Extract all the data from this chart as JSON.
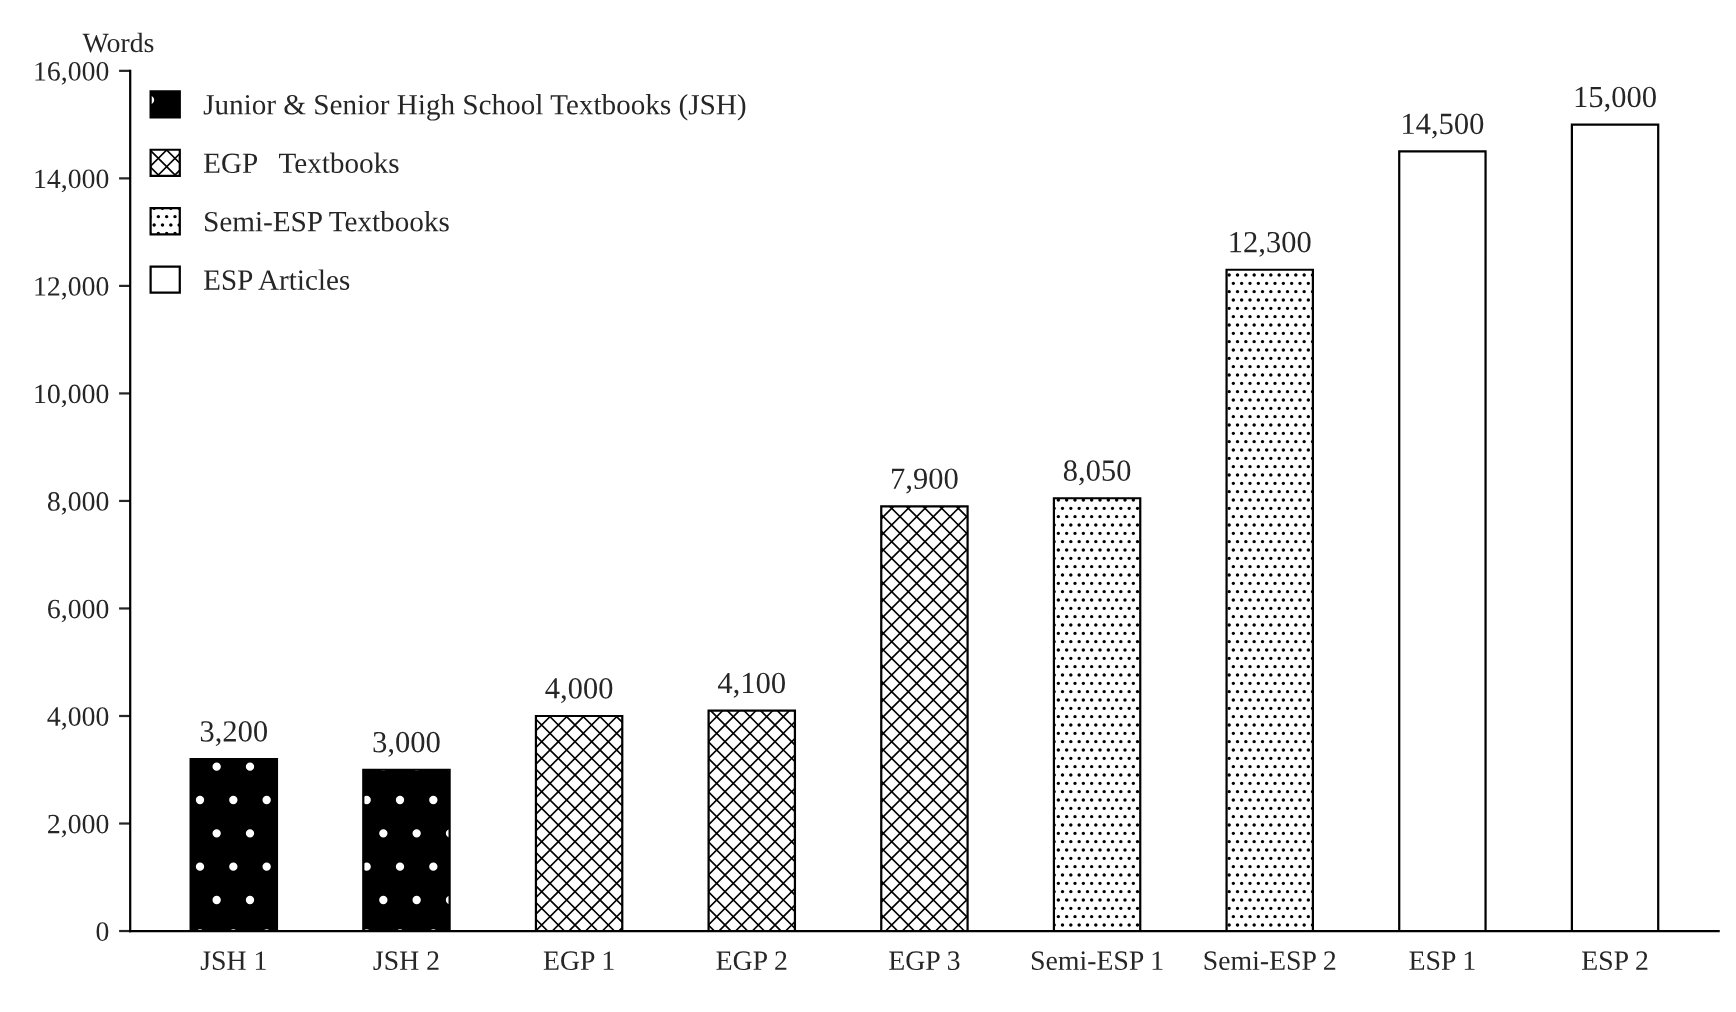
{
  "chart_data": {
    "type": "bar",
    "ylabel": "Words",
    "categories": [
      "JSH 1",
      "JSH 2",
      "EGP 1",
      "EGP 2",
      "EGP 3",
      "Semi-ESP 1",
      "Semi-ESP 2",
      "ESP 1",
      "ESP 2"
    ],
    "series": [
      {
        "name": "Junior & Senior High School Textbooks (JSH)",
        "color": "#000000",
        "values": [
          3200,
          3000,
          null,
          null,
          null,
          null,
          null,
          null,
          null
        ],
        "value_labels": [
          "3,200",
          "3,000",
          null,
          null,
          null,
          null,
          null,
          null,
          null
        ]
      },
      {
        "name": "EGP   Textbooks",
        "color": "#000000",
        "values": [
          null,
          null,
          4000,
          4100,
          7900,
          null,
          null,
          null,
          null
        ],
        "value_labels": [
          null,
          null,
          "4,000",
          "4,100",
          "7,900",
          null,
          null,
          null,
          null
        ]
      },
      {
        "name": "Semi-ESP Textbooks",
        "color": "#000000",
        "values": [
          null,
          null,
          null,
          null,
          null,
          8050,
          12300,
          null,
          null
        ],
        "value_labels": [
          null,
          null,
          null,
          null,
          null,
          "8,050",
          "12,300",
          null,
          null
        ]
      },
      {
        "name": "ESP Articles",
        "color": "#ffffff",
        "values": [
          null,
          null,
          null,
          null,
          null,
          null,
          null,
          14500,
          15000
        ],
        "value_labels": [
          null,
          null,
          null,
          null,
          null,
          null,
          null,
          "14,500",
          "15,000"
        ]
      }
    ],
    "ylim": [
      0,
      16000
    ],
    "yticks": [
      0,
      {
        "value": 2000,
        "label": "2,000"
      },
      {
        "value": 4000,
        "label": "4,000"
      },
      {
        "value": 6000,
        "label": "6,000"
      },
      {
        "value": 8000,
        "label": "8,000"
      },
      {
        "value": 10000,
        "label": "10,000"
      },
      {
        "value": 12000,
        "label": "12,000"
      },
      {
        "value": 14000,
        "label": "14,000"
      },
      {
        "value": 16000,
        "label": "16,000"
      }
    ],
    "legend": "top left",
    "grid": false
  }
}
